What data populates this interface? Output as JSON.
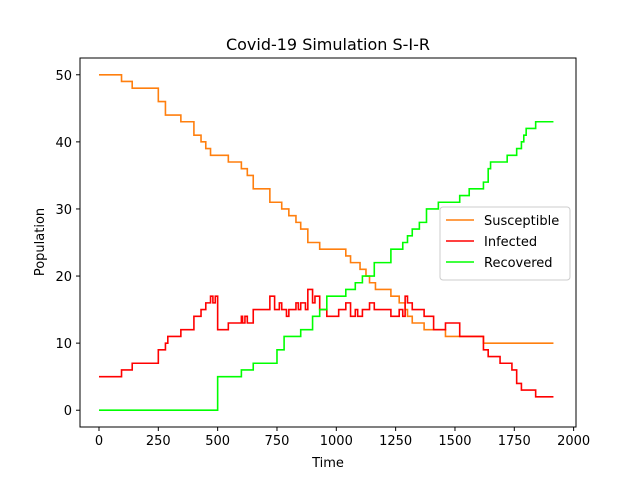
{
  "chart_data": {
    "type": "line",
    "title": "Covid-19 Simulation S-I-R",
    "xlabel": "Time",
    "ylabel": "Population",
    "xlim": [
      -80,
      2010
    ],
    "ylim": [
      -2.5,
      52.5
    ],
    "xticks": [
      0,
      250,
      500,
      750,
      1000,
      1250,
      1500,
      1750,
      2000
    ],
    "yticks": [
      0,
      10,
      20,
      30,
      40,
      50
    ],
    "grid": false,
    "legend_position": "center-right",
    "series": [
      {
        "name": "Susceptible",
        "color": "#ff7f0e",
        "step": true,
        "points": [
          [
            0,
            50
          ],
          [
            95,
            50
          ],
          [
            95,
            49
          ],
          [
            140,
            49
          ],
          [
            140,
            48
          ],
          [
            250,
            48
          ],
          [
            250,
            46
          ],
          [
            280,
            46
          ],
          [
            280,
            44
          ],
          [
            345,
            44
          ],
          [
            345,
            43
          ],
          [
            400,
            43
          ],
          [
            400,
            41
          ],
          [
            430,
            41
          ],
          [
            430,
            40
          ],
          [
            450,
            40
          ],
          [
            450,
            39
          ],
          [
            470,
            39
          ],
          [
            470,
            38
          ],
          [
            545,
            38
          ],
          [
            545,
            37
          ],
          [
            600,
            37
          ],
          [
            600,
            36
          ],
          [
            625,
            36
          ],
          [
            625,
            35
          ],
          [
            650,
            35
          ],
          [
            650,
            33
          ],
          [
            720,
            33
          ],
          [
            720,
            31
          ],
          [
            770,
            31
          ],
          [
            770,
            30
          ],
          [
            800,
            30
          ],
          [
            800,
            29
          ],
          [
            830,
            29
          ],
          [
            830,
            28
          ],
          [
            850,
            28
          ],
          [
            850,
            27
          ],
          [
            880,
            27
          ],
          [
            880,
            25
          ],
          [
            930,
            25
          ],
          [
            930,
            24
          ],
          [
            1040,
            24
          ],
          [
            1040,
            23
          ],
          [
            1060,
            23
          ],
          [
            1060,
            22
          ],
          [
            1100,
            22
          ],
          [
            1100,
            21
          ],
          [
            1125,
            21
          ],
          [
            1125,
            20
          ],
          [
            1140,
            20
          ],
          [
            1140,
            19
          ],
          [
            1165,
            19
          ],
          [
            1165,
            18
          ],
          [
            1230,
            18
          ],
          [
            1230,
            17
          ],
          [
            1265,
            17
          ],
          [
            1265,
            16
          ],
          [
            1290,
            16
          ],
          [
            1290,
            15
          ],
          [
            1300,
            15
          ],
          [
            1300,
            14
          ],
          [
            1320,
            14
          ],
          [
            1320,
            13
          ],
          [
            1370,
            13
          ],
          [
            1370,
            12
          ],
          [
            1460,
            12
          ],
          [
            1460,
            11
          ],
          [
            1620,
            11
          ],
          [
            1620,
            10
          ],
          [
            1915,
            10
          ]
        ]
      },
      {
        "name": "Infected",
        "color": "#ff0000",
        "step": true,
        "points": [
          [
            0,
            5
          ],
          [
            95,
            5
          ],
          [
            95,
            6
          ],
          [
            140,
            6
          ],
          [
            140,
            7
          ],
          [
            250,
            7
          ],
          [
            250,
            9
          ],
          [
            280,
            9
          ],
          [
            280,
            10
          ],
          [
            290,
            10
          ],
          [
            290,
            11
          ],
          [
            345,
            11
          ],
          [
            345,
            12
          ],
          [
            400,
            12
          ],
          [
            400,
            14
          ],
          [
            430,
            14
          ],
          [
            430,
            15
          ],
          [
            450,
            15
          ],
          [
            450,
            16
          ],
          [
            470,
            16
          ],
          [
            470,
            17
          ],
          [
            480,
            17
          ],
          [
            480,
            16
          ],
          [
            490,
            16
          ],
          [
            490,
            17
          ],
          [
            500,
            17
          ],
          [
            500,
            12
          ],
          [
            545,
            12
          ],
          [
            545,
            13
          ],
          [
            600,
            13
          ],
          [
            600,
            14
          ],
          [
            605,
            14
          ],
          [
            605,
            13
          ],
          [
            615,
            13
          ],
          [
            615,
            14
          ],
          [
            625,
            14
          ],
          [
            625,
            13
          ],
          [
            650,
            13
          ],
          [
            650,
            15
          ],
          [
            720,
            15
          ],
          [
            720,
            17
          ],
          [
            740,
            17
          ],
          [
            740,
            15
          ],
          [
            760,
            15
          ],
          [
            760,
            16
          ],
          [
            770,
            16
          ],
          [
            770,
            15
          ],
          [
            790,
            15
          ],
          [
            790,
            14
          ],
          [
            800,
            14
          ],
          [
            800,
            15
          ],
          [
            830,
            15
          ],
          [
            830,
            16
          ],
          [
            840,
            16
          ],
          [
            840,
            15
          ],
          [
            850,
            15
          ],
          [
            850,
            16
          ],
          [
            870,
            16
          ],
          [
            870,
            15
          ],
          [
            880,
            15
          ],
          [
            880,
            18
          ],
          [
            900,
            18
          ],
          [
            900,
            16
          ],
          [
            910,
            16
          ],
          [
            910,
            17
          ],
          [
            930,
            17
          ],
          [
            930,
            15
          ],
          [
            960,
            15
          ],
          [
            960,
            14
          ],
          [
            1010,
            14
          ],
          [
            1010,
            15
          ],
          [
            1040,
            15
          ],
          [
            1040,
            16
          ],
          [
            1060,
            16
          ],
          [
            1060,
            14
          ],
          [
            1080,
            14
          ],
          [
            1080,
            15
          ],
          [
            1090,
            15
          ],
          [
            1090,
            14
          ],
          [
            1110,
            14
          ],
          [
            1110,
            15
          ],
          [
            1140,
            15
          ],
          [
            1140,
            16
          ],
          [
            1160,
            16
          ],
          [
            1160,
            15
          ],
          [
            1230,
            15
          ],
          [
            1230,
            14
          ],
          [
            1265,
            14
          ],
          [
            1265,
            15
          ],
          [
            1280,
            15
          ],
          [
            1280,
            14
          ],
          [
            1290,
            14
          ],
          [
            1290,
            17
          ],
          [
            1300,
            17
          ],
          [
            1300,
            16
          ],
          [
            1320,
            16
          ],
          [
            1320,
            15
          ],
          [
            1370,
            15
          ],
          [
            1370,
            14
          ],
          [
            1410,
            14
          ],
          [
            1410,
            12
          ],
          [
            1460,
            12
          ],
          [
            1460,
            13
          ],
          [
            1520,
            13
          ],
          [
            1520,
            11
          ],
          [
            1620,
            11
          ],
          [
            1620,
            9
          ],
          [
            1640,
            9
          ],
          [
            1640,
            8
          ],
          [
            1690,
            8
          ],
          [
            1690,
            7
          ],
          [
            1740,
            7
          ],
          [
            1740,
            6
          ],
          [
            1760,
            6
          ],
          [
            1760,
            4
          ],
          [
            1780,
            4
          ],
          [
            1780,
            3
          ],
          [
            1840,
            3
          ],
          [
            1840,
            2
          ],
          [
            1915,
            2
          ]
        ]
      },
      {
        "name": "Recovered",
        "color": "#00ff00",
        "step": true,
        "points": [
          [
            0,
            0
          ],
          [
            500,
            0
          ],
          [
            500,
            5
          ],
          [
            600,
            5
          ],
          [
            600,
            6
          ],
          [
            650,
            6
          ],
          [
            650,
            7
          ],
          [
            750,
            7
          ],
          [
            750,
            9
          ],
          [
            780,
            9
          ],
          [
            780,
            11
          ],
          [
            850,
            11
          ],
          [
            850,
            12
          ],
          [
            900,
            12
          ],
          [
            900,
            14
          ],
          [
            930,
            14
          ],
          [
            930,
            15
          ],
          [
            960,
            15
          ],
          [
            960,
            17
          ],
          [
            1040,
            17
          ],
          [
            1040,
            18
          ],
          [
            1080,
            18
          ],
          [
            1080,
            19
          ],
          [
            1110,
            19
          ],
          [
            1110,
            20
          ],
          [
            1160,
            20
          ],
          [
            1160,
            22
          ],
          [
            1230,
            22
          ],
          [
            1230,
            24
          ],
          [
            1280,
            24
          ],
          [
            1280,
            25
          ],
          [
            1300,
            25
          ],
          [
            1300,
            26
          ],
          [
            1320,
            26
          ],
          [
            1320,
            27
          ],
          [
            1350,
            27
          ],
          [
            1350,
            28
          ],
          [
            1380,
            28
          ],
          [
            1380,
            30
          ],
          [
            1430,
            30
          ],
          [
            1430,
            31
          ],
          [
            1520,
            31
          ],
          [
            1520,
            32
          ],
          [
            1560,
            32
          ],
          [
            1560,
            33
          ],
          [
            1620,
            33
          ],
          [
            1620,
            34
          ],
          [
            1640,
            34
          ],
          [
            1640,
            36
          ],
          [
            1650,
            36
          ],
          [
            1650,
            37
          ],
          [
            1720,
            37
          ],
          [
            1720,
            38
          ],
          [
            1760,
            38
          ],
          [
            1760,
            39
          ],
          [
            1780,
            39
          ],
          [
            1780,
            40
          ],
          [
            1790,
            40
          ],
          [
            1790,
            41
          ],
          [
            1800,
            41
          ],
          [
            1800,
            42
          ],
          [
            1840,
            42
          ],
          [
            1840,
            43
          ],
          [
            1915,
            43
          ]
        ]
      }
    ]
  }
}
